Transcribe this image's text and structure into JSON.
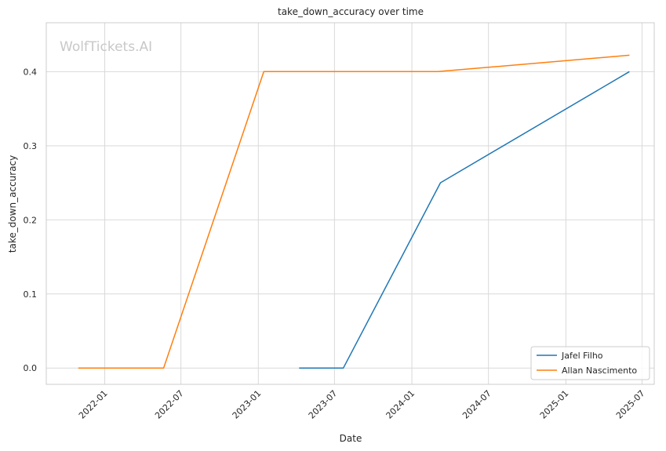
{
  "chart_data": {
    "type": "line",
    "title": "take_down_accuracy over time",
    "xlabel": "Date",
    "ylabel": "take_down_accuracy",
    "watermark": "WolfTickets.AI",
    "xlim": [
      "2021-08-15",
      "2025-07-30"
    ],
    "ylim": [
      -0.022,
      0.466
    ],
    "x_ticks": [
      "2022-01-01",
      "2022-07-01",
      "2023-01-01",
      "2023-07-01",
      "2024-01-01",
      "2024-07-01",
      "2025-01-01",
      "2025-07-01"
    ],
    "x_tick_labels": [
      "2022-01",
      "2022-07",
      "2023-01",
      "2023-07",
      "2024-01",
      "2024-07",
      "2025-01",
      "2025-07"
    ],
    "y_ticks": [
      0.0,
      0.1,
      0.2,
      0.3,
      0.4
    ],
    "y_tick_labels": [
      "0.0",
      "0.1",
      "0.2",
      "0.3",
      "0.4"
    ],
    "grid": true,
    "legend_position": "bottom-right",
    "series": [
      {
        "name": "Jafel Filho",
        "color": "#1f77b4",
        "points": [
          {
            "x": "2023-04-08",
            "y": 0.0
          },
          {
            "x": "2023-07-22",
            "y": 0.0
          },
          {
            "x": "2024-03-09",
            "y": 0.25
          },
          {
            "x": "2025-06-01",
            "y": 0.4
          }
        ]
      },
      {
        "name": "Allan Nascimento",
        "color": "#ff7f0e",
        "points": [
          {
            "x": "2021-10-30",
            "y": 0.0
          },
          {
            "x": "2022-05-21",
            "y": 0.0
          },
          {
            "x": "2023-01-14",
            "y": 0.4
          },
          {
            "x": "2024-03-02",
            "y": 0.4
          },
          {
            "x": "2025-06-01",
            "y": 0.4222
          }
        ]
      }
    ]
  }
}
